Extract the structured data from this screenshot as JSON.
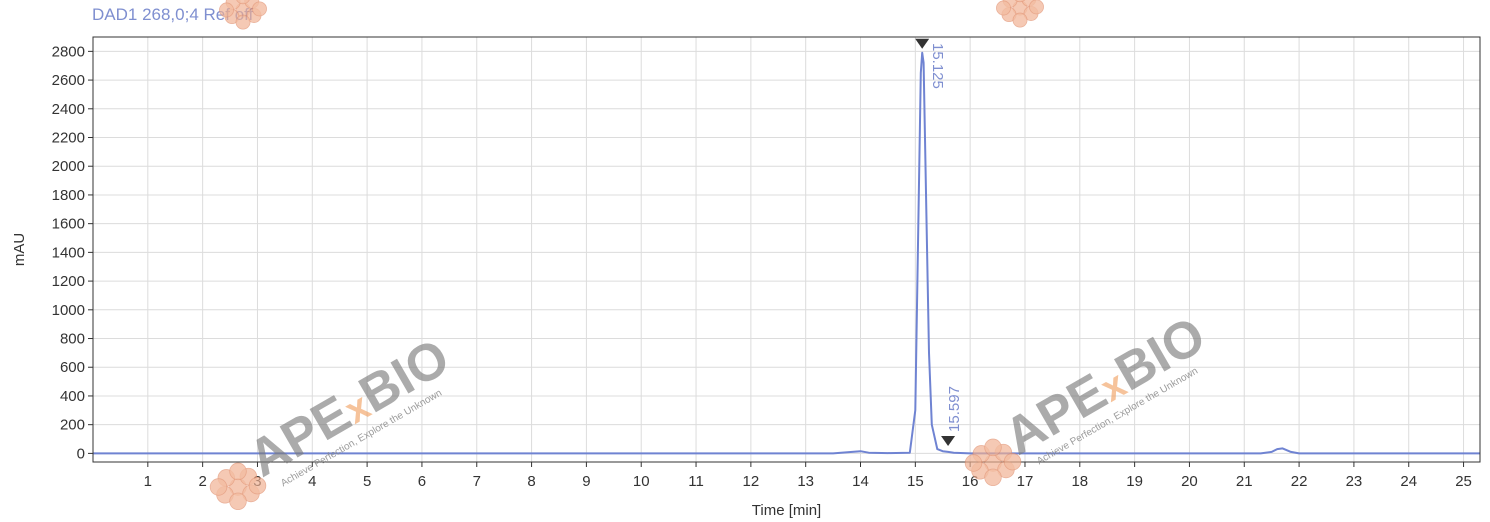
{
  "header": {
    "signal_label": "DAD1 268,0;4 Ref off"
  },
  "watermark": {
    "brand_prefix": "APE",
    "brand_x": "x",
    "brand_suffix": "BIO",
    "tagline": "Achieve Perfection, Explore the Unknown",
    "colors": {
      "text": "#7a7a7a",
      "x": "#f0a060",
      "logo": "#f0b090"
    }
  },
  "chart_data": {
    "type": "line",
    "title": "",
    "xlabel": "Time [min]",
    "ylabel": "mAU",
    "xlim": [
      0,
      25.3
    ],
    "ylim": [
      -60,
      2900
    ],
    "xticks": [
      1,
      2,
      3,
      4,
      5,
      6,
      7,
      8,
      9,
      10,
      11,
      12,
      13,
      14,
      15,
      16,
      17,
      18,
      19,
      20,
      21,
      22,
      23,
      24,
      25
    ],
    "yticks": [
      0,
      200,
      400,
      600,
      800,
      1000,
      1200,
      1400,
      1600,
      1800,
      2000,
      2200,
      2400,
      2600,
      2800
    ],
    "grid": true,
    "series": [
      {
        "color": "#6f83d2",
        "x": [
          0,
          13.5,
          13.85,
          14.0,
          14.15,
          14.5,
          14.9,
          15.0,
          15.05,
          15.1,
          15.125,
          15.15,
          15.2,
          15.25,
          15.3,
          15.4,
          15.5,
          15.597,
          15.7,
          16.0,
          21.3,
          21.5,
          21.6,
          21.7,
          21.85,
          22.0,
          25.3
        ],
        "y": [
          0,
          0,
          10,
          15,
          5,
          2,
          5,
          300,
          1500,
          2650,
          2790,
          2720,
          1700,
          700,
          200,
          30,
          15,
          10,
          5,
          0,
          0,
          10,
          30,
          35,
          10,
          0,
          0
        ]
      }
    ],
    "peaks": [
      {
        "time": 15.125,
        "label": "15.125",
        "y": 2790
      },
      {
        "time": 15.597,
        "label": "15.597",
        "y": 10
      }
    ]
  }
}
